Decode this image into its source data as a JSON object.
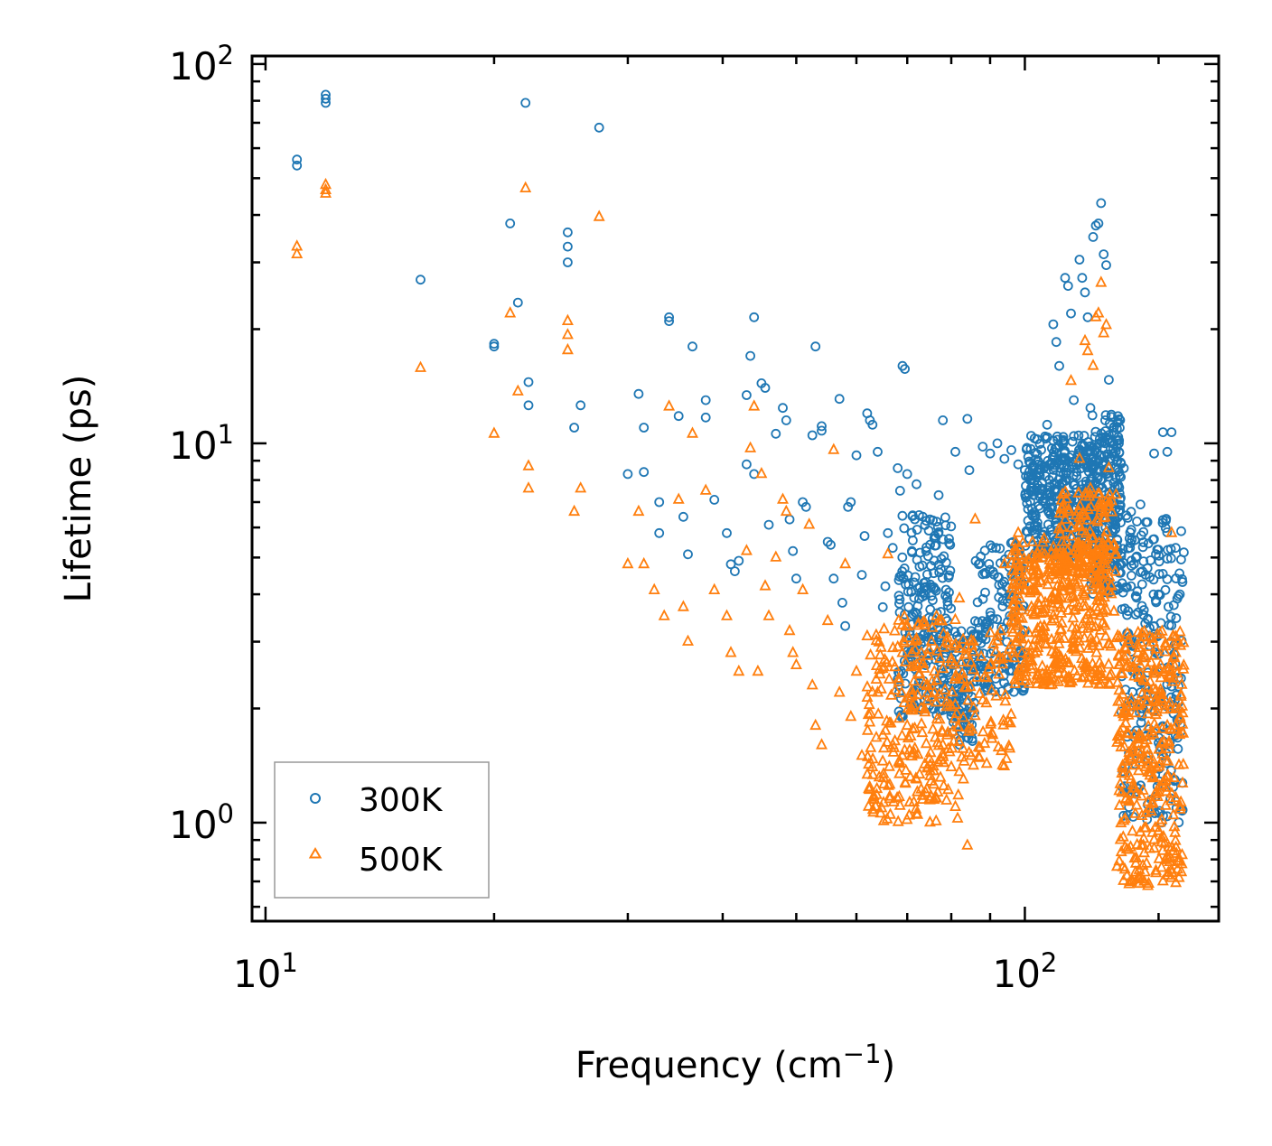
{
  "chart_data": {
    "type": "scatter",
    "xscale": "log",
    "yscale": "log",
    "xlim": [
      9.6,
      180
    ],
    "ylim": [
      0.55,
      105
    ],
    "xlabel_base": "Frequency (cm",
    "xlabel_sup": "−1",
    "xlabel_end": ")",
    "ylabel": "Lifetime (ps)",
    "x_major_ticks": [
      {
        "value": 10,
        "base": "10",
        "exp": "1"
      },
      {
        "value": 100,
        "base": "10",
        "exp": "2"
      }
    ],
    "y_major_ticks": [
      {
        "value": 1,
        "base": "10",
        "exp": "0"
      },
      {
        "value": 10,
        "base": "10",
        "exp": "1"
      },
      {
        "value": 100,
        "base": "10",
        "exp": "2"
      }
    ],
    "legend_position": "lower-left",
    "series": [
      {
        "name": "300K",
        "marker": "circle",
        "color": "#1f77b4",
        "points": [
          [
            11,
            56
          ],
          [
            11,
            54
          ],
          [
            12,
            83
          ],
          [
            12,
            81
          ],
          [
            12,
            79
          ],
          [
            16,
            27
          ],
          [
            20,
            18.3
          ],
          [
            20,
            18
          ],
          [
            21,
            38
          ],
          [
            21.5,
            23.5
          ],
          [
            22,
            79
          ],
          [
            22.2,
            14.5
          ],
          [
            22.2,
            12.6
          ],
          [
            25,
            36
          ],
          [
            25,
            33
          ],
          [
            25,
            30
          ],
          [
            25.5,
            11
          ],
          [
            26,
            12.6
          ],
          [
            27.5,
            68
          ],
          [
            30,
            8.3
          ],
          [
            31,
            13.5
          ],
          [
            31.5,
            11
          ],
          [
            31.5,
            8.4
          ],
          [
            33,
            7
          ],
          [
            33,
            5.8
          ],
          [
            34,
            21.5
          ],
          [
            34,
            21
          ],
          [
            35,
            11.8
          ],
          [
            35.5,
            6.4
          ],
          [
            36,
            5.1
          ],
          [
            36.5,
            18
          ],
          [
            38,
            13
          ],
          [
            38,
            11.7
          ],
          [
            39,
            7.1
          ],
          [
            40.5,
            5.8
          ],
          [
            41,
            4.8
          ],
          [
            41.5,
            4.6
          ],
          [
            42,
            4.9
          ],
          [
            43,
            13.4
          ],
          [
            43,
            8.8
          ],
          [
            43.5,
            17
          ],
          [
            44,
            21.5
          ],
          [
            44,
            8.3
          ],
          [
            45,
            14.4
          ],
          [
            45.5,
            14
          ],
          [
            46,
            6.1
          ],
          [
            47,
            10.6
          ],
          [
            48,
            12.4
          ],
          [
            48.5,
            11.5
          ],
          [
            49,
            6.3
          ],
          [
            49.5,
            5.2
          ],
          [
            50,
            4.4
          ],
          [
            51,
            7
          ],
          [
            51.5,
            6.8
          ],
          [
            52.5,
            10.5
          ],
          [
            53,
            18
          ],
          [
            54,
            11.1
          ],
          [
            54,
            10.8
          ],
          [
            55,
            5.5
          ],
          [
            55.5,
            5.4
          ],
          [
            56,
            4.4
          ],
          [
            57,
            13.1
          ],
          [
            57.5,
            3.8
          ],
          [
            58,
            3.3
          ],
          [
            58.5,
            6.8
          ],
          [
            59,
            7
          ],
          [
            60,
            9.3
          ],
          [
            61,
            4.5
          ],
          [
            61.5,
            5.7
          ],
          [
            62,
            12
          ],
          [
            62.5,
            11.5
          ],
          [
            63,
            11.2
          ],
          [
            64,
            9.5
          ],
          [
            65,
            3.7
          ],
          [
            65.5,
            4.2
          ],
          [
            66,
            5.8
          ],
          [
            67,
            5.3
          ],
          [
            68,
            8.6
          ],
          [
            68.5,
            7.5
          ],
          [
            69,
            16
          ],
          [
            69.5,
            15.7
          ],
          [
            70,
            8.3
          ],
          [
            71,
            5.2
          ],
          [
            72,
            7.8
          ],
          [
            73,
            3.4
          ],
          [
            74,
            2.6
          ],
          [
            75,
            6.3
          ],
          [
            76,
            2.9
          ],
          [
            77,
            7.3
          ],
          [
            78,
            11.5
          ],
          [
            79,
            2.3
          ],
          [
            80,
            2
          ],
          [
            81,
            9.5
          ],
          [
            82,
            2.1
          ],
          [
            83,
            1.9
          ],
          [
            84,
            11.6
          ],
          [
            84.5,
            8.5
          ],
          [
            85,
            3.2
          ],
          [
            86,
            3.4
          ],
          [
            87,
            2.8
          ],
          [
            88,
            9.8
          ],
          [
            90,
            9.4
          ],
          [
            92,
            10
          ],
          [
            94,
            9.1
          ],
          [
            96,
            9.6
          ],
          [
            98,
            8.8
          ],
          [
            100,
            8.5
          ],
          [
            101,
            9.2
          ],
          [
            102,
            8
          ],
          [
            103,
            10.3
          ],
          [
            104,
            9
          ],
          [
            106,
            8.6
          ],
          [
            107,
            11.2
          ],
          [
            108,
            7.7
          ],
          [
            109,
            20.6
          ],
          [
            110,
            18.5
          ],
          [
            111,
            16
          ],
          [
            112,
            7.4
          ],
          [
            113,
            27.3
          ],
          [
            114,
            26
          ],
          [
            115,
            22
          ],
          [
            116,
            13
          ],
          [
            117,
            8.2
          ],
          [
            118,
            30.5
          ],
          [
            119,
            27.3
          ],
          [
            120,
            25
          ],
          [
            121,
            21.5
          ],
          [
            122,
            12.4
          ],
          [
            123,
            35
          ],
          [
            124,
            37.5
          ],
          [
            125,
            38
          ],
          [
            126,
            43
          ],
          [
            127,
            31.5
          ],
          [
            128,
            29.5
          ],
          [
            129,
            14.7
          ],
          [
            130,
            11.9
          ],
          [
            131,
            11
          ],
          [
            133,
            10
          ],
          [
            135,
            8.6
          ],
          [
            138,
            6.6
          ],
          [
            140,
            5
          ],
          [
            142,
            6.9
          ],
          [
            145,
            6.2
          ],
          [
            148,
            9.4
          ],
          [
            150,
            4
          ],
          [
            152,
            10.7
          ],
          [
            154,
            9.5
          ],
          [
            156,
            10.7
          ],
          [
            158,
            5.3
          ],
          [
            160,
            4
          ]
        ]
      },
      {
        "name": "500K",
        "marker": "triangle",
        "color": "#ff7f0e",
        "points": [
          [
            11,
            33
          ],
          [
            11,
            31.5
          ],
          [
            12,
            48
          ],
          [
            12,
            46.5
          ],
          [
            12,
            45.5
          ],
          [
            16,
            15.8
          ],
          [
            20,
            10.6
          ],
          [
            21,
            22
          ],
          [
            21.5,
            13.7
          ],
          [
            22,
            47
          ],
          [
            22.2,
            8.7
          ],
          [
            22.2,
            7.6
          ],
          [
            25,
            21
          ],
          [
            25,
            19.3
          ],
          [
            25,
            17.6
          ],
          [
            25.5,
            6.6
          ],
          [
            26,
            7.6
          ],
          [
            27.5,
            39.5
          ],
          [
            30,
            4.8
          ],
          [
            31,
            6.6
          ],
          [
            31.5,
            4.8
          ],
          [
            32.5,
            4.1
          ],
          [
            33.5,
            3.5
          ],
          [
            34,
            12.5
          ],
          [
            35,
            7.1
          ],
          [
            35.5,
            3.7
          ],
          [
            36,
            3
          ],
          [
            36.5,
            10.6
          ],
          [
            38,
            7.5
          ],
          [
            39,
            4.1
          ],
          [
            40.5,
            3.5
          ],
          [
            41,
            2.8
          ],
          [
            42,
            2.5
          ],
          [
            43,
            5.2
          ],
          [
            43.5,
            9.7
          ],
          [
            44,
            12.5
          ],
          [
            44.5,
            2.5
          ],
          [
            45,
            8.3
          ],
          [
            45.5,
            4.2
          ],
          [
            46,
            3.5
          ],
          [
            47,
            5
          ],
          [
            48,
            7.1
          ],
          [
            48.5,
            6.6
          ],
          [
            49,
            3.2
          ],
          [
            49.5,
            2.8
          ],
          [
            50,
            2.6
          ],
          [
            51,
            4.1
          ],
          [
            52,
            6.1
          ],
          [
            52.5,
            2.3
          ],
          [
            53,
            1.8
          ],
          [
            54,
            1.6
          ],
          [
            55,
            3.4
          ],
          [
            56,
            9.6
          ],
          [
            57,
            2.2
          ],
          [
            58,
            4.8
          ],
          [
            59,
            1.9
          ],
          [
            60,
            2.5
          ],
          [
            61,
            1.5
          ],
          [
            62,
            3.1
          ],
          [
            63,
            1.4
          ],
          [
            64,
            2.2
          ],
          [
            65,
            1.7
          ],
          [
            66,
            5.1
          ],
          [
            67,
            1.6
          ],
          [
            68,
            2.9
          ],
          [
            69,
            1.5
          ],
          [
            70,
            1.8
          ],
          [
            71,
            2.8
          ],
          [
            72,
            1.3
          ],
          [
            73,
            2
          ],
          [
            74,
            1.2
          ],
          [
            75,
            1
          ],
          [
            76,
            2.5
          ],
          [
            77,
            3.4
          ],
          [
            78,
            1.6
          ],
          [
            79,
            1.7
          ],
          [
            80,
            1.4
          ],
          [
            81,
            1.1
          ],
          [
            82,
            3.9
          ],
          [
            83,
            1.3
          ],
          [
            84,
            0.87
          ],
          [
            85,
            1.5
          ],
          [
            86,
            6.3
          ],
          [
            88,
            2.1
          ],
          [
            90,
            2.6
          ],
          [
            92,
            3.1
          ],
          [
            94,
            4.8
          ],
          [
            96,
            3.4
          ],
          [
            98,
            5.8
          ],
          [
            100,
            4.4
          ],
          [
            102,
            3.7
          ],
          [
            104,
            5.1
          ],
          [
            106,
            5.6
          ],
          [
            108,
            4.8
          ],
          [
            110,
            4.6
          ],
          [
            112,
            6
          ],
          [
            114,
            6.6
          ],
          [
            115,
            14.6
          ],
          [
            116,
            3.8
          ],
          [
            118,
            9.1
          ],
          [
            120,
            18.6
          ],
          [
            121,
            17.5
          ],
          [
            122,
            7.6
          ],
          [
            123,
            16
          ],
          [
            124,
            21.5
          ],
          [
            125,
            22
          ],
          [
            126,
            26.5
          ],
          [
            127,
            19.5
          ],
          [
            128,
            20.5
          ],
          [
            129,
            8.6
          ],
          [
            130,
            4.2
          ],
          [
            131,
            3.6
          ],
          [
            133,
            2.6
          ],
          [
            135,
            1.9
          ],
          [
            138,
            1.3
          ],
          [
            140,
            0.78
          ],
          [
            142,
            0.72
          ],
          [
            145,
            1.5
          ],
          [
            148,
            0.9
          ],
          [
            150,
            1.2
          ],
          [
            152,
            0.7
          ],
          [
            154,
            1.8
          ],
          [
            156,
            5.8
          ],
          [
            158,
            2.8
          ],
          [
            160,
            1.9
          ]
        ]
      }
    ],
    "clusters": [
      {
        "series": 0,
        "count": 230,
        "x": [
          68,
          80
        ],
        "y": [
          1.9,
          6.5
        ],
        "seed": 11
      },
      {
        "series": 0,
        "count": 90,
        "x": [
          80,
          86
        ],
        "y": [
          1.6,
          3.2
        ],
        "seed": 12
      },
      {
        "series": 0,
        "count": 160,
        "x": [
          86,
          100
        ],
        "y": [
          2.2,
          5.5
        ],
        "seed": 13
      },
      {
        "series": 0,
        "count": 380,
        "x": [
          100,
          123
        ],
        "y": [
          5.0,
          10.5
        ],
        "seed": 14
      },
      {
        "series": 0,
        "count": 260,
        "x": [
          122,
          134
        ],
        "y": [
          4.0,
          12.0
        ],
        "seed": 15
      },
      {
        "series": 0,
        "count": 260,
        "x": [
          134,
          162
        ],
        "y": [
          1.0,
          6.5
        ],
        "seed": 16
      },
      {
        "series": 1,
        "count": 260,
        "x": [
          62,
          82
        ],
        "y": [
          1.0,
          3.5
        ],
        "seed": 21
      },
      {
        "series": 1,
        "count": 80,
        "x": [
          82,
          96
        ],
        "y": [
          1.4,
          3.2
        ],
        "seed": 22
      },
      {
        "series": 1,
        "count": 420,
        "x": [
          96,
          130
        ],
        "y": [
          2.3,
          5.5
        ],
        "seed": 23
      },
      {
        "series": 1,
        "count": 120,
        "x": [
          110,
          132
        ],
        "y": [
          4.5,
          7.5
        ],
        "seed": 24
      },
      {
        "series": 1,
        "count": 360,
        "x": [
          132,
          162
        ],
        "y": [
          0.68,
          3.2
        ],
        "seed": 25
      }
    ]
  }
}
